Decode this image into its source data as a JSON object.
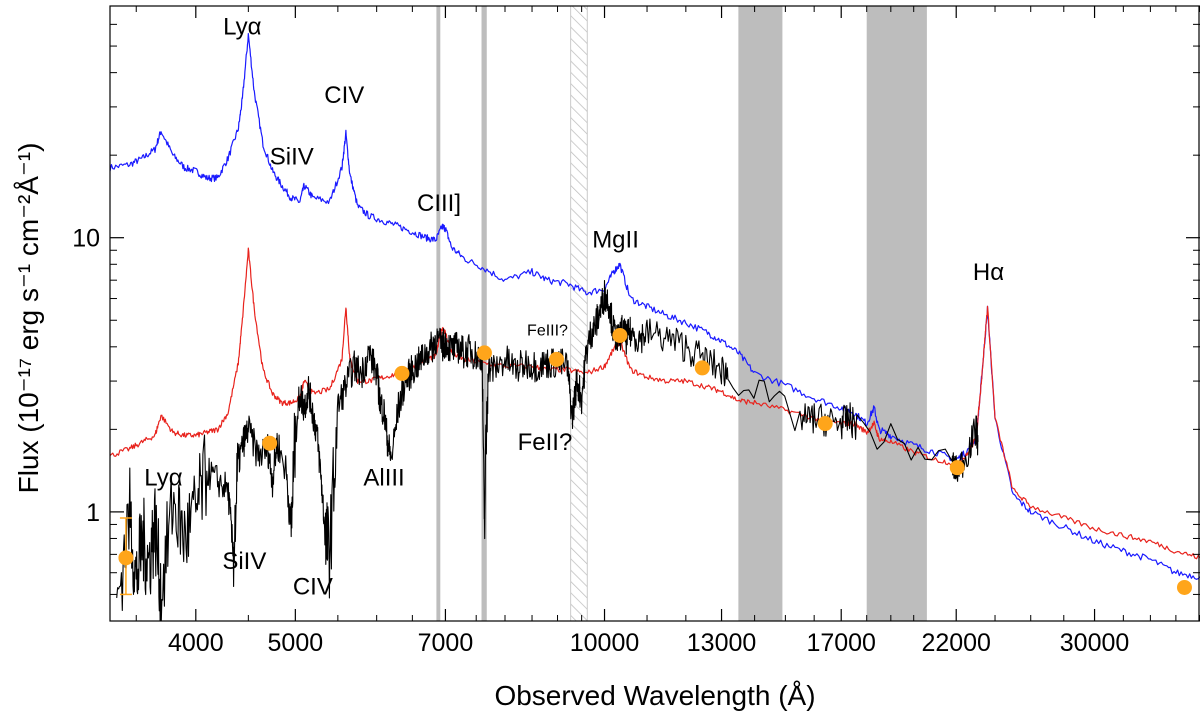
{
  "chart_data": {
    "type": "line",
    "title": "",
    "xlabel": "Observed Wavelength (Å)",
    "ylabel": "Flux (10⁻¹⁷ erg s⁻¹ cm⁻²Å⁻¹)",
    "x_scale": "log",
    "y_scale": "log",
    "xlim": [
      3300,
      38000
    ],
    "ylim": [
      0.4,
      70
    ],
    "x_ticks": [
      4000,
      5000,
      7000,
      10000,
      13000,
      17000,
      22000,
      30000
    ],
    "y_ticks": [
      1,
      10
    ],
    "grid": false,
    "colors": {
      "blue_template": "#1a1aff",
      "red_template": "#e8231d",
      "observed": "#000000",
      "photometry": "#ffa51a",
      "masked": "#bdbdbd"
    },
    "masked_regions": [
      {
        "x0": 6860,
        "x1": 6920,
        "style": "solid"
      },
      {
        "x0": 7590,
        "x1": 7680,
        "style": "solid"
      },
      {
        "x0": 9270,
        "x1": 9620,
        "style": "hatched"
      },
      {
        "x0": 13500,
        "x1": 14900,
        "style": "solid"
      },
      {
        "x0": 18000,
        "x1": 20600,
        "style": "solid"
      }
    ],
    "series": [
      {
        "key": "blue",
        "x": [
          3300,
          3450,
          3550,
          3650,
          3700,
          3800,
          3900,
          4000,
          4100,
          4200,
          4300,
          4400,
          4440,
          4500,
          4560,
          4650,
          4750,
          4850,
          4950,
          5050,
          5100,
          5200,
          5400,
          5550,
          5600,
          5650,
          5750,
          5900,
          6100,
          6300,
          6500,
          6700,
          6850,
          6950,
          7000,
          7100,
          7300,
          7600,
          8000,
          8500,
          8800,
          9200,
          9600,
          10000,
          10200,
          10350,
          10600,
          11000,
          11500,
          12000,
          12600,
          13000,
          13500,
          14000,
          15000,
          16000,
          17000,
          17500,
          18000,
          18300,
          18500,
          19000,
          20000,
          21000,
          22000,
          22500,
          23000,
          23200,
          23400,
          23600,
          24000,
          25000,
          26000,
          28000,
          30000,
          32000,
          34000,
          36000,
          38000
        ],
        "y": [
          18.0,
          18.5,
          19.5,
          21.0,
          24.5,
          20.0,
          18.0,
          17.5,
          16.5,
          16.5,
          19.5,
          25.0,
          32.0,
          55.0,
          34.0,
          22.0,
          17.5,
          15.5,
          14.0,
          13.5,
          15.5,
          14.0,
          13.5,
          18.0,
          24.0,
          17.0,
          13.0,
          12.0,
          11.5,
          11.0,
          10.5,
          10.0,
          9.8,
          11.0,
          10.8,
          9.2,
          8.4,
          7.8,
          7.0,
          7.5,
          7.0,
          6.8,
          6.3,
          6.5,
          7.5,
          8.0,
          6.0,
          5.6,
          5.2,
          4.9,
          4.5,
          4.2,
          3.8,
          3.2,
          2.9,
          2.6,
          2.4,
          2.3,
          2.1,
          2.4,
          2.0,
          1.9,
          1.75,
          1.65,
          1.55,
          1.65,
          1.85,
          2.6,
          3.8,
          5.5,
          2.2,
          1.15,
          1.0,
          0.88,
          0.78,
          0.72,
          0.67,
          0.6,
          0.58
        ]
      },
      {
        "key": "red",
        "x": [
          3300,
          3450,
          3550,
          3650,
          3700,
          3800,
          3900,
          4000,
          4100,
          4200,
          4300,
          4400,
          4440,
          4500,
          4560,
          4650,
          4750,
          4850,
          4950,
          5050,
          5100,
          5200,
          5400,
          5550,
          5600,
          5650,
          5750,
          5900,
          6100,
          6300,
          6500,
          6700,
          6850,
          6950,
          7000,
          7100,
          7300,
          7600,
          8000,
          8500,
          8800,
          9200,
          9600,
          10000,
          10200,
          10350,
          10600,
          11000,
          11500,
          12000,
          12600,
          13000,
          13500,
          14000,
          15000,
          16000,
          17000,
          17500,
          18000,
          18300,
          18500,
          19000,
          20000,
          21000,
          22000,
          22500,
          23000,
          23200,
          23400,
          23600,
          24000,
          25000,
          26000,
          28000,
          30000,
          32000,
          34000,
          36000,
          38000
        ],
        "y": [
          1.6,
          1.7,
          1.8,
          1.9,
          2.25,
          1.95,
          1.9,
          1.9,
          1.95,
          2.0,
          2.3,
          3.5,
          5.0,
          9.0,
          5.5,
          3.3,
          2.7,
          2.5,
          2.5,
          2.6,
          3.0,
          2.7,
          2.8,
          3.6,
          5.6,
          3.6,
          3.0,
          3.0,
          3.1,
          3.2,
          3.4,
          3.6,
          3.7,
          4.7,
          4.5,
          3.8,
          3.6,
          3.5,
          3.4,
          3.4,
          3.3,
          3.3,
          3.2,
          3.4,
          3.9,
          4.2,
          3.3,
          3.1,
          3.0,
          3.0,
          2.85,
          2.75,
          2.55,
          2.5,
          2.35,
          2.2,
          2.1,
          2.1,
          1.95,
          2.1,
          1.85,
          1.8,
          1.65,
          1.55,
          1.5,
          1.6,
          1.85,
          2.6,
          3.8,
          5.6,
          2.2,
          1.2,
          1.05,
          0.95,
          0.87,
          0.82,
          0.78,
          0.72,
          0.68
        ]
      },
      {
        "key": "observed",
        "x": [
          3350,
          3450,
          3500,
          3550,
          3600,
          3650,
          3700,
          3800,
          3900,
          4000,
          4100,
          4200,
          4300,
          4350,
          4400,
          4450,
          4500,
          4600,
          4700,
          4750,
          4800,
          4900,
          4950,
          5000,
          5050,
          5100,
          5150,
          5200,
          5250,
          5300,
          5350,
          5400,
          5500,
          5600,
          5700,
          5800,
          5900,
          6000,
          6050,
          6100,
          6150,
          6200,
          6300,
          6400,
          6500,
          6600,
          6700,
          6800,
          6850,
          6950,
          7000,
          7100,
          7200,
          7300,
          7400,
          7500,
          7600,
          7640,
          7700,
          7800,
          8000,
          8200,
          8400,
          8600,
          8800,
          9000,
          9200,
          9300,
          9400,
          9500,
          9600,
          9700,
          9800,
          9900,
          10000,
          10100,
          10200,
          10300,
          10400,
          10500,
          10600,
          10800,
          11000,
          11500,
          12000,
          12500,
          13000,
          13200,
          15500,
          16000,
          16500,
          17000,
          17300,
          17600,
          21800,
          22000,
          22500,
          23000,
          23100
        ],
        "y": [
          0.45,
          1.0,
          0.55,
          0.8,
          0.65,
          0.9,
          0.5,
          1.1,
          0.8,
          1.0,
          1.4,
          1.3,
          1.2,
          0.7,
          1.5,
          1.8,
          2.0,
          1.6,
          1.7,
          1.3,
          1.8,
          1.4,
          0.85,
          1.9,
          2.7,
          2.4,
          2.8,
          2.3,
          1.9,
          1.3,
          0.8,
          0.7,
          2.4,
          2.9,
          3.4,
          3.2,
          3.8,
          3.2,
          2.5,
          2.3,
          1.8,
          1.55,
          2.4,
          3.0,
          3.3,
          3.5,
          3.8,
          4.0,
          4.3,
          4.0,
          4.2,
          3.9,
          4.0,
          3.8,
          3.9,
          3.7,
          3.7,
          0.9,
          3.4,
          3.3,
          3.6,
          3.3,
          3.5,
          3.4,
          3.5,
          3.5,
          3.4,
          2.2,
          3.0,
          2.6,
          3.8,
          4.5,
          4.8,
          5.4,
          6.2,
          5.8,
          4.6,
          4.2,
          4.6,
          4.3,
          4.5,
          4.3,
          4.5,
          4.3,
          4.0,
          3.6,
          3.3,
          3.2,
          2.15,
          2.2,
          2.15,
          2.1,
          2.2,
          2.05,
          1.5,
          1.4,
          1.6,
          2.0,
          1.8
        ]
      }
    ],
    "photometry": {
      "x": [
        3420,
        4720,
        6350,
        7640,
        8980,
        10350,
        12450,
        16400,
        22050,
        36700
      ],
      "y": [
        0.68,
        1.78,
        3.2,
        3.8,
        3.6,
        4.4,
        3.35,
        2.1,
        1.45,
        0.53
      ],
      "errorbar": {
        "x": 3420,
        "ylow": 0.5,
        "yhigh": 0.95
      }
    },
    "annotations": [
      {
        "text": "Lyα",
        "x": 4440,
        "y": 55
      },
      {
        "text": "SiIV",
        "x": 4960,
        "y": 18.5
      },
      {
        "text": "CIV",
        "x": 5580,
        "y": 31
      },
      {
        "text": "CIII]",
        "x": 6900,
        "y": 12.5
      },
      {
        "text": "MgII",
        "x": 10250,
        "y": 9.2
      },
      {
        "text": "Hα",
        "x": 23650,
        "y": 7.0
      },
      {
        "text": "FeIII?",
        "x": 8800,
        "y": 4.4
      },
      {
        "text": "FeII?",
        "x": 8750,
        "y": 1.68
      },
      {
        "text": "AlIII",
        "x": 6100,
        "y": 1.25
      },
      {
        "text": "Lyα",
        "x": 3720,
        "y": 1.25
      },
      {
        "text": "SiIV",
        "x": 4460,
        "y": 0.62
      },
      {
        "text": "CIV",
        "x": 5200,
        "y": 0.5
      }
    ]
  }
}
